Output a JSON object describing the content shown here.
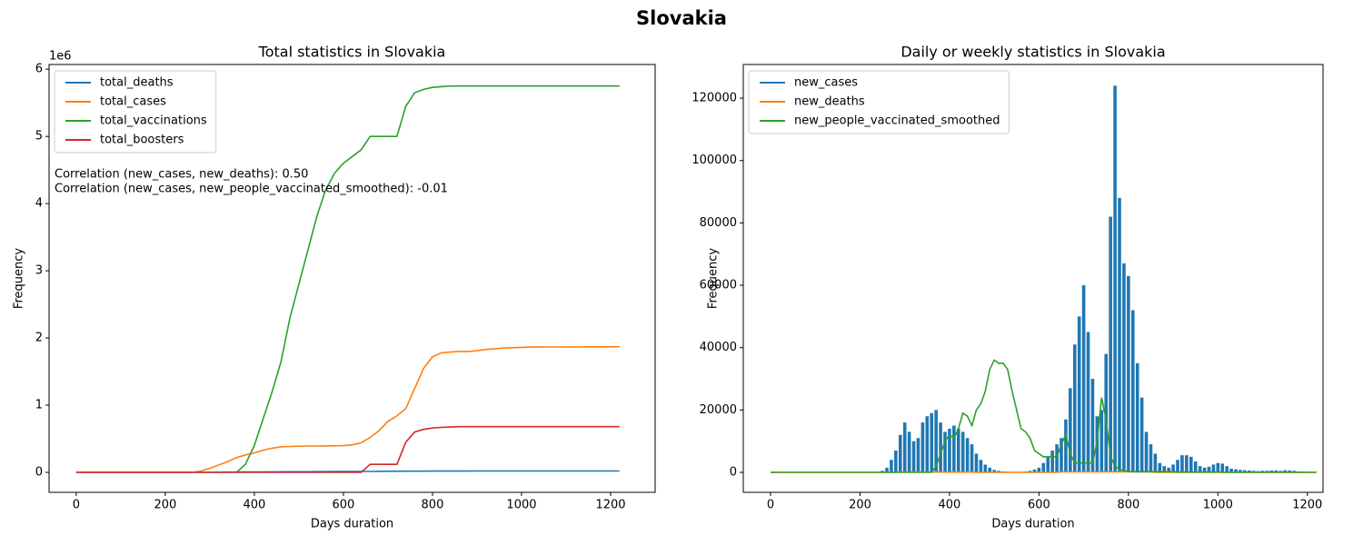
{
  "title": "Slovakia",
  "chart_data": [
    {
      "type": "line",
      "title": "Total statistics in Slovakia",
      "xlabel": "Days duration",
      "ylabel": "Frequency",
      "offset_text": "1e6",
      "x": [
        0,
        20,
        40,
        60,
        80,
        100,
        120,
        140,
        160,
        180,
        200,
        220,
        240,
        260,
        280,
        300,
        320,
        340,
        360,
        380,
        400,
        420,
        440,
        460,
        480,
        500,
        520,
        540,
        560,
        580,
        600,
        620,
        640,
        660,
        680,
        700,
        720,
        740,
        760,
        780,
        800,
        820,
        840,
        860,
        880,
        900,
        920,
        940,
        960,
        980,
        1000,
        1020,
        1040,
        1060,
        1080,
        1100,
        1120,
        1140,
        1160,
        1180,
        1200,
        1220
      ],
      "series": [
        {
          "name": "total_deaths",
          "color": "#1f77b4",
          "values": [
            0,
            0,
            0,
            0,
            0,
            0,
            0,
            0,
            0,
            0,
            0,
            0,
            0,
            0,
            200,
            500,
            1500,
            3000,
            4500,
            5500,
            6000,
            7000,
            8000,
            9000,
            9500,
            10000,
            10500,
            11000,
            11500,
            12000,
            12500,
            13000,
            13500,
            14000,
            15000,
            16000,
            17000,
            17500,
            18000,
            18500,
            19000,
            19500,
            19700,
            19800,
            19900,
            20000,
            21000,
            21000,
            21000,
            21000,
            21000,
            21000,
            21000,
            21000,
            21000,
            21000,
            21000,
            21000,
            21000,
            21000,
            21000,
            21000
          ]
        },
        {
          "name": "total_cases",
          "color": "#ff7f0e",
          "values": [
            0,
            0,
            0,
            0,
            0,
            0,
            0,
            0,
            0,
            0,
            0,
            0,
            0,
            0,
            20000,
            60000,
            110000,
            160000,
            220000,
            260000,
            290000,
            330000,
            360000,
            380000,
            385000,
            390000,
            392000,
            393000,
            394000,
            395000,
            398000,
            410000,
            440000,
            520000,
            620000,
            760000,
            840000,
            950000,
            1250000,
            1550000,
            1720000,
            1780000,
            1790000,
            1800000,
            1800000,
            1810000,
            1830000,
            1840000,
            1850000,
            1855000,
            1860000,
            1865000,
            1865000,
            1866000,
            1866000,
            1867000,
            1867000,
            1868000,
            1868000,
            1869000,
            1869000,
            1870000
          ]
        },
        {
          "name": "total_vaccinations",
          "color": "#2ca02c",
          "values": [
            null,
            null,
            null,
            null,
            null,
            null,
            null,
            null,
            null,
            null,
            null,
            null,
            null,
            null,
            null,
            null,
            null,
            null,
            0,
            120000,
            400000,
            800000,
            1200000,
            1650000,
            2300000,
            2800000,
            3300000,
            3800000,
            4200000,
            4450000,
            4600000,
            4700000,
            4800000,
            5000000,
            5000000,
            5000000,
            5000000,
            5450000,
            5650000,
            5700000,
            5730000,
            5740000,
            5750000,
            5750000,
            5750000,
            5750000,
            5750000,
            5750000,
            5750000,
            5750000,
            5750000,
            5750000,
            5750000,
            5750000,
            5750000,
            5750000,
            5750000,
            5750000,
            5750000,
            5750000,
            5750000,
            5750000
          ]
        },
        {
          "name": "total_boosters",
          "color": "#d62728",
          "values": [
            0,
            0,
            0,
            0,
            0,
            0,
            0,
            0,
            0,
            0,
            0,
            0,
            0,
            0,
            0,
            0,
            0,
            0,
            0,
            0,
            0,
            0,
            0,
            0,
            0,
            0,
            0,
            0,
            0,
            0,
            0,
            0,
            0,
            120000,
            120000,
            120000,
            120000,
            450000,
            600000,
            640000,
            660000,
            670000,
            675000,
            680000,
            680000,
            680000,
            680000,
            680000,
            680000,
            680000,
            680000,
            680000,
            680000,
            680000,
            680000,
            680000,
            680000,
            680000,
            680000,
            680000,
            680000,
            680000
          ]
        }
      ],
      "annotations": [
        "Correlation (new_cases, new_deaths): 0.50",
        "Correlation (new_cases, new_people_vaccinated_smoothed): -0.01"
      ],
      "xlim": [
        -61,
        1300
      ],
      "ylim": [
        -297000,
        6070000
      ],
      "xticks": [
        0,
        200,
        400,
        600,
        800,
        1000,
        1200
      ],
      "yticks": [
        0,
        {
          "value": 1000000,
          "label": "1"
        },
        {
          "value": 2000000,
          "label": "2"
        },
        {
          "value": 3000000,
          "label": "3"
        },
        {
          "value": 4000000,
          "label": "4"
        },
        {
          "value": 5000000,
          "label": "5"
        },
        {
          "value": 6000000,
          "label": "6"
        }
      ],
      "legend": "upper left"
    },
    {
      "type": "mixed",
      "title": "Daily or weekly statistics in Slovakia",
      "xlabel": "Days duration",
      "ylabel": "Frequency",
      "x": [
        0,
        10,
        20,
        30,
        40,
        50,
        60,
        70,
        80,
        90,
        100,
        110,
        120,
        130,
        140,
        150,
        160,
        170,
        180,
        190,
        200,
        210,
        220,
        230,
        240,
        250,
        260,
        270,
        280,
        290,
        300,
        310,
        320,
        330,
        340,
        350,
        360,
        370,
        380,
        390,
        400,
        410,
        420,
        430,
        440,
        450,
        460,
        470,
        480,
        490,
        500,
        510,
        520,
        530,
        540,
        550,
        560,
        570,
        580,
        590,
        600,
        610,
        620,
        630,
        640,
        650,
        660,
        670,
        680,
        690,
        700,
        710,
        720,
        730,
        740,
        750,
        760,
        770,
        780,
        790,
        800,
        810,
        820,
        830,
        840,
        850,
        860,
        870,
        880,
        890,
        900,
        910,
        920,
        930,
        940,
        950,
        960,
        970,
        980,
        990,
        1000,
        1010,
        1020,
        1030,
        1040,
        1050,
        1060,
        1070,
        1080,
        1090,
        1100,
        1110,
        1120,
        1130,
        1140,
        1150,
        1160,
        1170,
        1180,
        1190,
        1200,
        1210,
        1220
      ],
      "series": [
        {
          "name": "new_cases",
          "color": "#1f77b4",
          "kind": "bar",
          "values": [
            0,
            0,
            0,
            0,
            0,
            0,
            0,
            0,
            0,
            0,
            0,
            0,
            0,
            0,
            0,
            0,
            0,
            0,
            0,
            0,
            0,
            0,
            0,
            0,
            0,
            500,
            1500,
            4000,
            7000,
            12000,
            16000,
            13000,
            10000,
            11000,
            16000,
            18000,
            19000,
            20000,
            16000,
            13000,
            14000,
            15000,
            14000,
            13000,
            11000,
            9000,
            6000,
            4000,
            2500,
            1500,
            800,
            500,
            300,
            200,
            200,
            200,
            200,
            300,
            500,
            900,
            1500,
            3000,
            5000,
            7000,
            9000,
            11000,
            17000,
            27000,
            41000,
            50000,
            60000,
            45000,
            30000,
            18000,
            20000,
            38000,
            82000,
            124000,
            88000,
            67000,
            63000,
            52000,
            35000,
            24000,
            13000,
            9000,
            6000,
            3000,
            2000,
            1500,
            2500,
            4000,
            5500,
            5500,
            5000,
            3500,
            2000,
            1500,
            1800,
            2500,
            3000,
            2800,
            2000,
            1200,
            1000,
            800,
            700,
            600,
            500,
            400,
            500,
            500,
            600,
            600,
            500,
            700,
            600,
            500,
            300,
            200,
            200,
            100,
            100
          ]
        },
        {
          "name": "new_deaths",
          "color": "#ff7f0e",
          "kind": "line",
          "values": [
            0,
            0,
            0,
            0,
            0,
            0,
            0,
            0,
            0,
            0,
            0,
            0,
            0,
            0,
            0,
            0,
            0,
            0,
            0,
            0,
            0,
            0,
            0,
            0,
            0,
            0,
            0,
            0,
            100,
            100,
            100,
            100,
            100,
            100,
            100,
            100,
            100,
            100,
            100,
            100,
            100,
            100,
            100,
            100,
            100,
            100,
            0,
            0,
            0,
            0,
            0,
            0,
            0,
            0,
            0,
            0,
            0,
            0,
            0,
            0,
            0,
            0,
            0,
            0,
            0,
            150,
            150,
            150,
            150,
            150,
            150,
            150,
            150,
            150,
            150,
            150,
            150,
            150,
            150,
            150,
            150,
            150,
            150,
            150,
            150,
            150,
            0,
            0,
            0,
            0,
            0,
            0,
            0,
            0,
            0,
            0,
            0,
            0,
            0,
            0,
            0,
            0,
            0,
            0,
            0,
            0,
            0,
            0,
            0,
            0,
            0,
            0,
            0,
            0,
            0,
            0,
            0,
            0,
            0,
            0,
            0,
            0,
            0
          ]
        },
        {
          "name": "new_people_vaccinated_smoothed",
          "color": "#2ca02c",
          "kind": "line",
          "values": [
            0,
            0,
            0,
            0,
            0,
            0,
            0,
            0,
            0,
            0,
            0,
            0,
            0,
            0,
            0,
            0,
            0,
            0,
            0,
            0,
            0,
            0,
            0,
            0,
            0,
            0,
            0,
            0,
            0,
            0,
            0,
            0,
            0,
            0,
            0,
            0,
            0,
            2000,
            6000,
            10000,
            12000,
            11000,
            14000,
            19000,
            18000,
            15000,
            20000,
            22000,
            26000,
            33000,
            36000,
            35000,
            35000,
            33000,
            26000,
            20000,
            14000,
            13000,
            11000,
            7000,
            6000,
            5000,
            5000,
            5000,
            5000,
            9000,
            12000,
            6000,
            3000,
            3000,
            3000,
            3000,
            3000,
            10000,
            24000,
            17000,
            5000,
            2000,
            1000,
            500,
            300,
            200,
            200,
            200,
            200,
            200,
            200,
            200,
            200,
            200,
            200,
            100,
            100,
            100,
            100,
            100,
            100,
            100,
            100,
            100,
            100,
            0,
            0,
            0,
            0,
            0,
            0,
            0,
            0,
            0,
            0,
            0,
            0,
            0,
            0,
            0,
            0,
            0,
            0,
            0,
            0,
            0,
            0
          ]
        }
      ],
      "xlim": [
        -61,
        1235
      ],
      "ylim": [
        -6400,
        130800
      ],
      "xticks": [
        0,
        200,
        400,
        600,
        800,
        1000,
        1200
      ],
      "yticks": [
        0,
        20000,
        40000,
        60000,
        80000,
        100000,
        120000
      ],
      "legend": "upper left"
    }
  ]
}
